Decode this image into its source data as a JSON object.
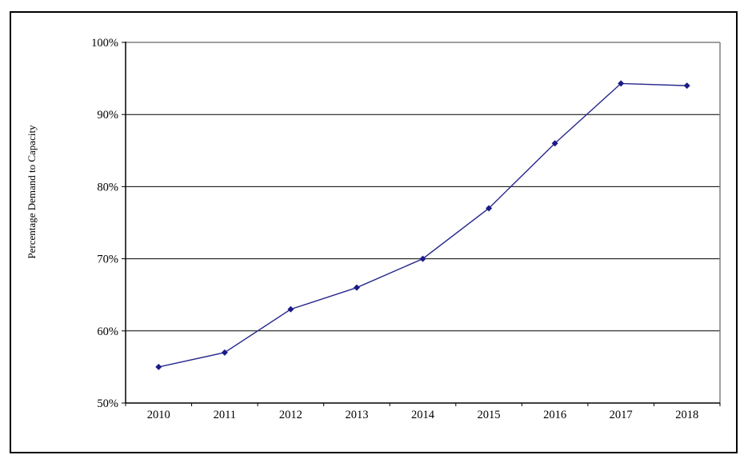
{
  "chart_data": {
    "type": "line",
    "title": "",
    "xlabel": "",
    "ylabel": "Percentage Demand to Capacity",
    "x": [
      "2010",
      "2011",
      "2012",
      "2013",
      "2014",
      "2015",
      "2016",
      "2017",
      "2018"
    ],
    "series": [
      {
        "name": "Percentage Demand to Capacity",
        "values": [
          55,
          57,
          63,
          66,
          70,
          77,
          86,
          94.3,
          94
        ]
      }
    ],
    "ylim": [
      50,
      100
    ],
    "ytick_step": 10,
    "ytick_labels": [
      "50%",
      "60%",
      "70%",
      "80%",
      "90%",
      "100%"
    ],
    "grid": true,
    "legend_position": "none",
    "marker": "diamond",
    "colors": {
      "line": "#28288C",
      "marker": "#1B1B85",
      "grid": "#000000",
      "axis": "#000000",
      "plot_border": "#808080",
      "figure_border": "#000000",
      "background": "#FFFFFF"
    }
  }
}
